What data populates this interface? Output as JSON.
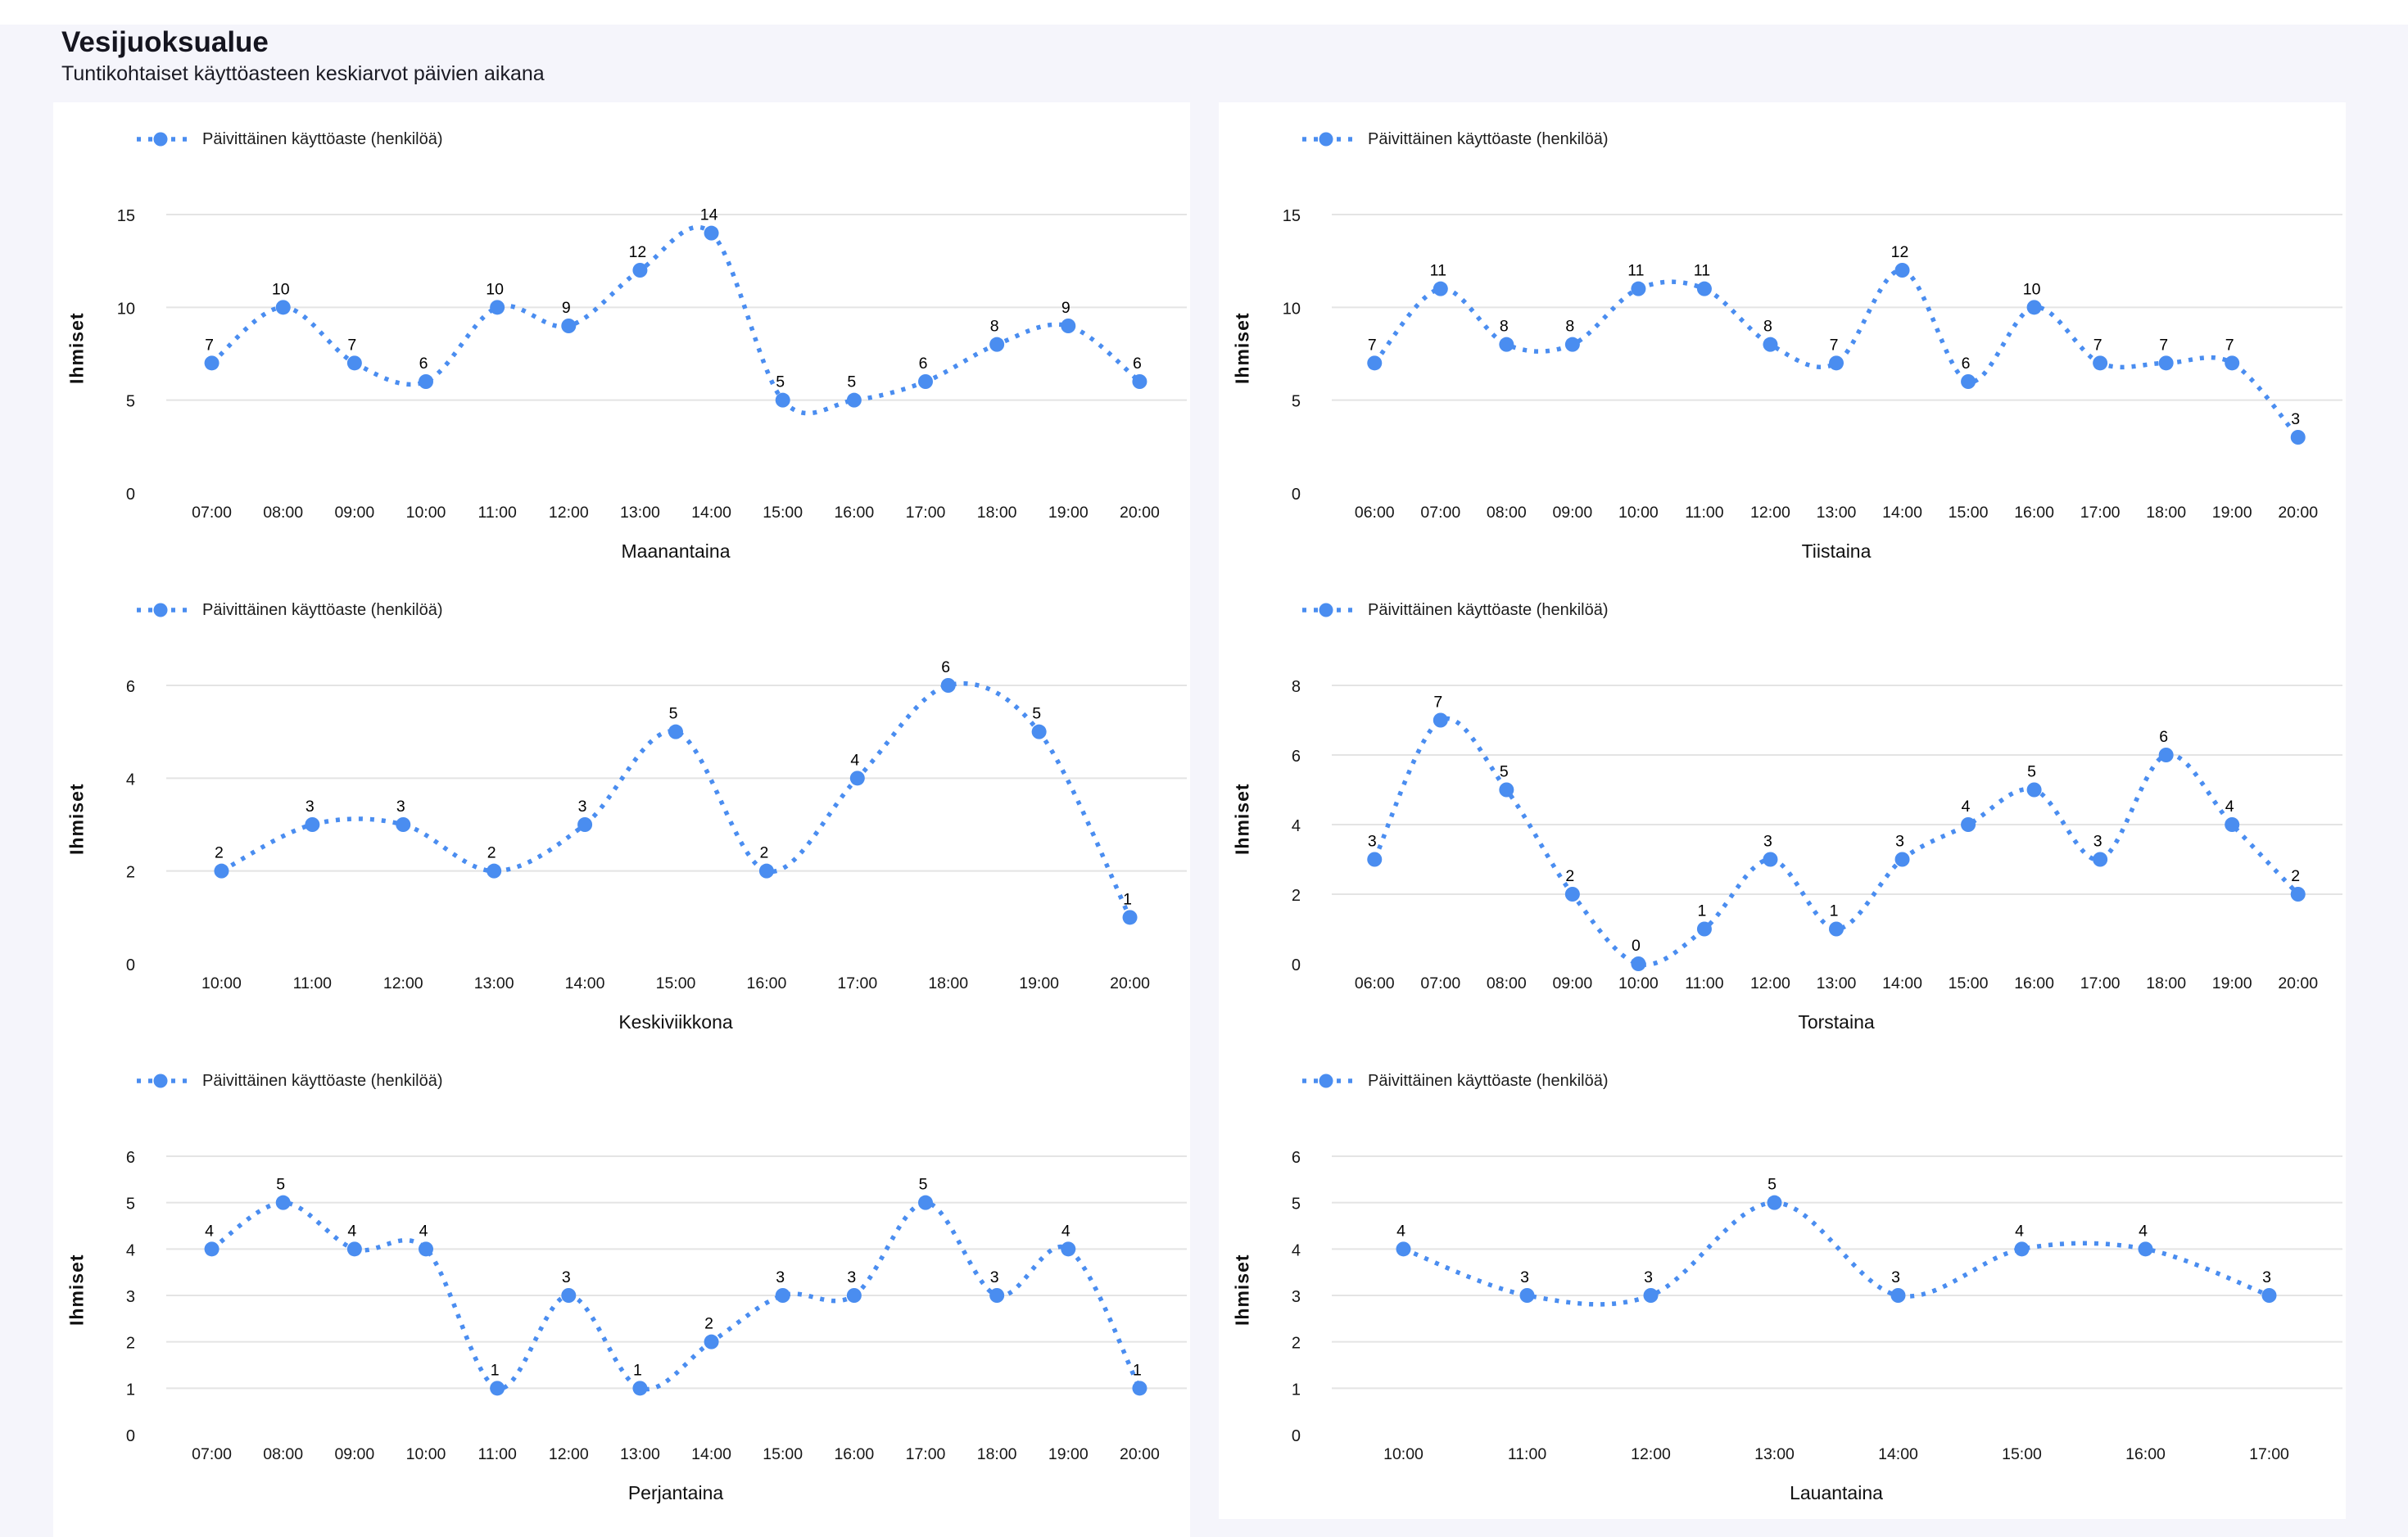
{
  "page": {
    "title": "Vesijuoksualue",
    "subtitle": "Tuntikohtaiset käyttöasteen keskiarvot päivien aikana",
    "background_color": "#f5f5fb",
    "card_color": "#ffffff",
    "accent_color": "#4a8df0",
    "gridline_color": "#e4e4e4"
  },
  "chart_data": [
    {
      "type": "line",
      "title": "Maanantaina",
      "ylabel": "Ihmiset",
      "legend_position": "top",
      "grid": true,
      "line_style": "dotted-smooth",
      "x": [
        "07:00",
        "08:00",
        "09:00",
        "10:00",
        "11:00",
        "12:00",
        "13:00",
        "14:00",
        "15:00",
        "16:00",
        "17:00",
        "18:00",
        "19:00",
        "20:00"
      ],
      "series": [
        {
          "name": "Päivittäinen käyttöaste (henkilöä)",
          "values": [
            7,
            10,
            7,
            6,
            10,
            9,
            12,
            14,
            5,
            5,
            6,
            8,
            9,
            6
          ]
        }
      ],
      "yticks": [
        0,
        5,
        10,
        15
      ],
      "ylim": [
        0,
        15
      ]
    },
    {
      "type": "line",
      "title": "Tiistaina",
      "ylabel": "Ihmiset",
      "legend_position": "top",
      "grid": true,
      "line_style": "dotted-smooth",
      "x": [
        "06:00",
        "07:00",
        "08:00",
        "09:00",
        "10:00",
        "11:00",
        "12:00",
        "13:00",
        "14:00",
        "15:00",
        "16:00",
        "17:00",
        "18:00",
        "19:00",
        "20:00"
      ],
      "series": [
        {
          "name": "Päivittäinen käyttöaste (henkilöä)",
          "values": [
            7,
            11,
            8,
            8,
            11,
            11,
            8,
            7,
            12,
            6,
            10,
            7,
            7,
            7,
            3
          ]
        }
      ],
      "yticks": [
        0,
        5,
        10,
        15
      ],
      "ylim": [
        0,
        15
      ]
    },
    {
      "type": "line",
      "title": "Keskiviikkona",
      "ylabel": "Ihmiset",
      "legend_position": "top",
      "grid": true,
      "line_style": "dotted-smooth",
      "x": [
        "10:00",
        "11:00",
        "12:00",
        "13:00",
        "14:00",
        "15:00",
        "16:00",
        "17:00",
        "18:00",
        "19:00",
        "20:00"
      ],
      "series": [
        {
          "name": "Päivittäinen käyttöaste (henkilöä)",
          "values": [
            2,
            3,
            3,
            2,
            3,
            5,
            2,
            4,
            6,
            5,
            1
          ]
        }
      ],
      "yticks": [
        0,
        2,
        4,
        6
      ],
      "ylim": [
        0,
        6
      ]
    },
    {
      "type": "line",
      "title": "Torstaina",
      "ylabel": "Ihmiset",
      "legend_position": "top",
      "grid": true,
      "line_style": "dotted-smooth",
      "x": [
        "06:00",
        "07:00",
        "08:00",
        "09:00",
        "10:00",
        "11:00",
        "12:00",
        "13:00",
        "14:00",
        "15:00",
        "16:00",
        "17:00",
        "18:00",
        "19:00",
        "20:00"
      ],
      "series": [
        {
          "name": "Päivittäinen käyttöaste (henkilöä)",
          "values": [
            3,
            7,
            5,
            2,
            0,
            1,
            3,
            1,
            3,
            4,
            5,
            3,
            6,
            4,
            2
          ]
        }
      ],
      "yticks": [
        0,
        2,
        4,
        6,
        8
      ],
      "ylim": [
        0,
        8
      ]
    },
    {
      "type": "line",
      "title": "Perjantaina",
      "ylabel": "Ihmiset",
      "legend_position": "top",
      "grid": true,
      "line_style": "dotted-smooth",
      "x": [
        "07:00",
        "08:00",
        "09:00",
        "10:00",
        "11:00",
        "12:00",
        "13:00",
        "14:00",
        "15:00",
        "16:00",
        "17:00",
        "18:00",
        "19:00",
        "20:00"
      ],
      "series": [
        {
          "name": "Päivittäinen käyttöaste (henkilöä)",
          "values": [
            4,
            5,
            4,
            4,
            1,
            3,
            1,
            2,
            3,
            3,
            5,
            3,
            4,
            1
          ]
        }
      ],
      "yticks": [
        0,
        1,
        2,
        3,
        4,
        5,
        6
      ],
      "ylim": [
        0,
        6
      ]
    },
    {
      "type": "line",
      "title": "Lauantaina",
      "ylabel": "Ihmiset",
      "legend_position": "top",
      "grid": true,
      "line_style": "dotted-smooth",
      "x": [
        "10:00",
        "11:00",
        "12:00",
        "13:00",
        "14:00",
        "15:00",
        "16:00",
        "17:00"
      ],
      "series": [
        {
          "name": "Päivittäinen käyttöaste (henkilöä)",
          "values": [
            4,
            3,
            3,
            5,
            3,
            4,
            4,
            3
          ]
        }
      ],
      "yticks": [
        0,
        1,
        2,
        3,
        4,
        5,
        6
      ],
      "ylim": [
        0,
        6
      ]
    }
  ]
}
